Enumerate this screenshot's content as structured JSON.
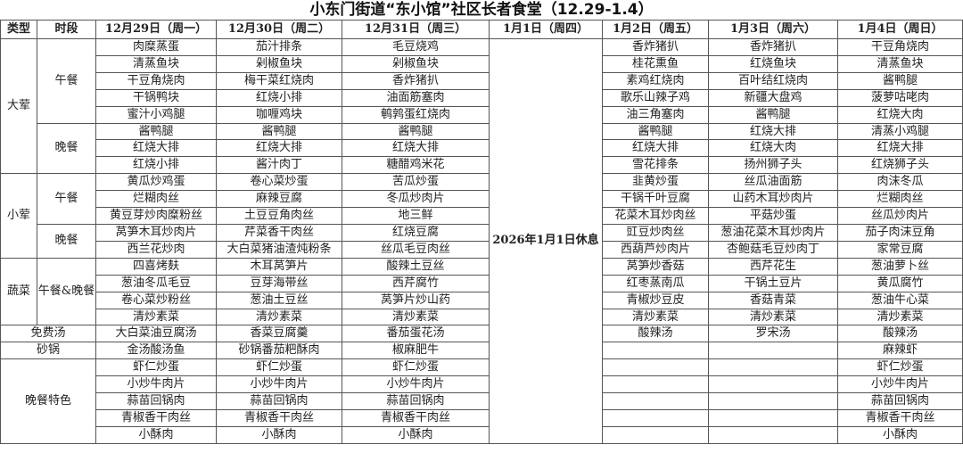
{
  "title": "小东门街道“东小馆”社区长者食堂（12.29-1.4）",
  "headers": {
    "type": "类型",
    "period": "时段",
    "days": [
      "12月29日（周一）",
      "12月30日（周二）",
      "12月31日（周三）",
      "1月1日（周四）",
      "1月2日（周五）",
      "1月3日（周六）",
      "1月4日（周日）"
    ]
  },
  "holiday_note": "2026年1月1日休息",
  "sections": [
    {
      "type": "大荤",
      "periods": [
        {
          "name": "午餐",
          "rows": [
            [
              "肉糜蒸蛋",
              "茄汁排条",
              "毛豆烧鸡",
              "香炸猪扒",
              "香炸猪扒",
              "干豆角烧肉"
            ],
            [
              "清蒸鱼块",
              "剁椒鱼块",
              "剁椒鱼块",
              "桂花熏鱼",
              "红烧鱼块",
              "清蒸鱼块"
            ],
            [
              "干豆角烧肉",
              "梅干菜红烧肉",
              "香炸猪扒",
              "素鸡红烧肉",
              "百叶结红烧肉",
              "酱鸭腿"
            ],
            [
              "干锅鸭块",
              "红烧小排",
              "油面筋塞肉",
              "歌乐山辣子鸡",
              "新疆大盘鸡",
              "菠萝咕咾肉"
            ],
            [
              "蜜汁小鸡腿",
              "咖喱鸡块",
              "鹌鹑蛋红烧肉",
              "油三角塞肉",
              "酱鸭腿",
              "红烧大肉"
            ]
          ]
        },
        {
          "name": "晚餐",
          "rows": [
            [
              "酱鸭腿",
              "酱鸭腿",
              "酱鸭腿",
              "酱鸭腿",
              "红烧大排",
              "清蒸小鸡腿"
            ],
            [
              "红烧大排",
              "红烧大排",
              "红烧大排",
              "红烧大排",
              "红烧大肉",
              "红烧大排"
            ],
            [
              "红烧小排",
              "酱汁肉丁",
              "糖醋鸡米花",
              "雪花排条",
              "扬州狮子头",
              "红烧狮子头"
            ]
          ]
        }
      ]
    },
    {
      "type": "小荤",
      "periods": [
        {
          "name": "午餐",
          "rows": [
            [
              "黄瓜炒鸡蛋",
              "卷心菜炒蛋",
              "苦瓜炒蛋",
              "韭黄炒蛋",
              "丝瓜油面筋",
              "肉沫冬瓜"
            ],
            [
              "烂糊肉丝",
              "麻辣豆腐",
              "冬瓜炒肉片",
              "干锅千叶豆腐",
              "山药木耳炒肉片",
              "烂糊肉丝"
            ],
            [
              "黄豆芽炒肉糜粉丝",
              "土豆豆角肉丝",
              "地三鲜",
              "花菜木耳炒肉丝",
              "平菇炒蛋",
              "丝瓜炒肉片"
            ]
          ]
        },
        {
          "name": "晚餐",
          "rows": [
            [
              "莴笋木耳炒肉片",
              "芹菜香干肉丝",
              "红烧豆腐",
              "豇豆炒肉丝",
              "葱油花菜木耳炒肉片",
              "茄子肉沫豆角"
            ],
            [
              "西兰花炒肉",
              "大白菜猪油渣炖粉条",
              "丝瓜毛豆肉丝",
              "西葫芦炒肉片",
              "杏鲍菇毛豆炒肉丁",
              "家常豆腐"
            ]
          ]
        }
      ]
    },
    {
      "type": "蔬菜",
      "periods": [
        {
          "name": "午餐&晚餐",
          "rows": [
            [
              "四喜烤麸",
              "木耳莴笋片",
              "酸辣土豆丝",
              "莴笋炒香菇",
              "西芹花生",
              "葱油萝卜丝"
            ],
            [
              "葱油冬瓜毛豆",
              "豆芽海带丝",
              "西芹腐竹",
              "红枣蒸南瓜",
              "干锅土豆片",
              "黄瓜腐竹"
            ],
            [
              "卷心菜炒粉丝",
              "葱油土豆丝",
              "莴笋片炒山药",
              "青椒炒豆皮",
              "香菇青菜",
              "葱油牛心菜"
            ],
            [
              "清炒素菜",
              "清炒素菜",
              "清炒素菜",
              "清炒素菜",
              "清炒素菜",
              "清炒素菜"
            ]
          ]
        }
      ]
    },
    {
      "type": "免费汤",
      "periods": [
        {
          "name": null,
          "rows": [
            [
              "大白菜油豆腐汤",
              "香菜豆腐羹",
              "番茄蛋花汤",
              "酸辣汤",
              "罗宋汤",
              "酸辣汤"
            ]
          ]
        }
      ]
    },
    {
      "type": "砂锅",
      "periods": [
        {
          "name": null,
          "rows": [
            [
              "金汤酸汤鱼",
              "砂锅番茄粑酥肉",
              "椒麻肥牛",
              "",
              "",
              "麻辣虾"
            ]
          ]
        }
      ]
    },
    {
      "type": "晚餐特色",
      "periods": [
        {
          "name": null,
          "rows": [
            [
              "虾仁炒蛋",
              "虾仁炒蛋",
              "虾仁炒蛋",
              "",
              "",
              "虾仁炒蛋"
            ],
            [
              "小炒牛肉片",
              "小炒牛肉片",
              "小炒牛肉片",
              "",
              "",
              "小炒牛肉片"
            ],
            [
              "蒜苗回锅肉",
              "蒜苗回锅肉",
              "蒜苗回锅肉",
              "",
              "",
              "蒜苗回锅肉"
            ],
            [
              "青椒香干肉丝",
              "青椒香干肉丝",
              "青椒香干肉丝",
              "",
              "",
              "青椒香干肉丝"
            ],
            [
              "小酥肉",
              "小酥肉",
              "小酥肉",
              "",
              "",
              "小酥肉"
            ]
          ]
        }
      ]
    }
  ]
}
